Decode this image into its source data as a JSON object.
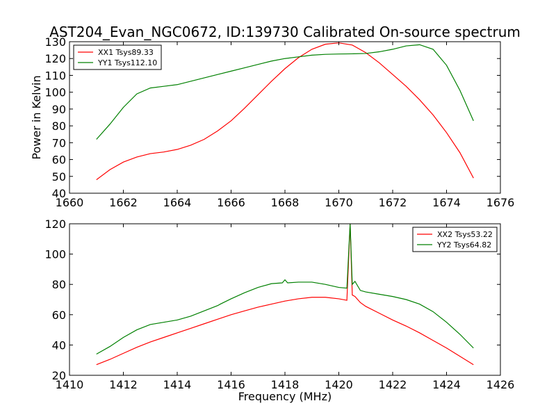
{
  "figure": {
    "title": "AST204_Evan_NGC0672, ID:139730 Calibrated On-source spectrum",
    "ylabel": "Power in Kelvin",
    "xlabel": "Frequency (MHz)"
  },
  "chart_data": [
    {
      "type": "line",
      "title": "AST204_Evan_NGC0672, ID:139730 Calibrated On-source spectrum",
      "ylabel": "Power in Kelvin",
      "xlabel": "",
      "xlim": [
        1660,
        1676
      ],
      "ylim": [
        40,
        130
      ],
      "xticks": [
        1660,
        1662,
        1664,
        1666,
        1668,
        1670,
        1672,
        1674,
        1676
      ],
      "yticks": [
        40,
        50,
        60,
        70,
        80,
        90,
        100,
        110,
        120,
        130
      ],
      "grid": false,
      "legend_position": "top-left",
      "series": [
        {
          "name": "XX1 Tsys89.33",
          "color": "#ff0000",
          "x": [
            1661,
            1661.5,
            1662,
            1662.5,
            1663,
            1663.5,
            1664,
            1664.5,
            1665,
            1665.5,
            1666,
            1666.5,
            1667,
            1667.5,
            1668,
            1668.5,
            1669,
            1669.5,
            1670,
            1670.5,
            1671,
            1671.5,
            1672,
            1672.5,
            1673,
            1673.5,
            1674,
            1674.5,
            1675
          ],
          "y": [
            48,
            54,
            58.5,
            61.5,
            63.5,
            64.5,
            66,
            68.5,
            72,
            77,
            83,
            90.5,
            98.5,
            106.5,
            114,
            120.5,
            125.5,
            128.5,
            129.3,
            128,
            123.5,
            117.5,
            110.5,
            103.5,
            95.5,
            86.5,
            76,
            64,
            49
          ]
        },
        {
          "name": "YY1 Tsys112.10",
          "color": "#008000",
          "x": [
            1661,
            1661.5,
            1662,
            1662.5,
            1663,
            1663.5,
            1664,
            1664.5,
            1665,
            1665.5,
            1666,
            1666.5,
            1667,
            1667.5,
            1668,
            1668.5,
            1669,
            1669.5,
            1670,
            1670.5,
            1671,
            1671.5,
            1672,
            1672.5,
            1673,
            1673.5,
            1674,
            1674.5,
            1675
          ],
          "y": [
            72,
            81,
            91,
            99,
            102.5,
            103.5,
            104.5,
            106.5,
            108.5,
            110.5,
            112.5,
            114.5,
            116.5,
            118.5,
            120,
            121,
            122,
            122.5,
            122.7,
            122.8,
            123,
            124,
            125.5,
            127.5,
            128.2,
            125.5,
            116,
            101,
            83
          ]
        }
      ]
    },
    {
      "type": "line",
      "title": "",
      "ylabel": "",
      "xlabel": "Frequency (MHz)",
      "xlim": [
        1410,
        1426
      ],
      "ylim": [
        20,
        120
      ],
      "xticks": [
        1410,
        1412,
        1414,
        1416,
        1418,
        1420,
        1422,
        1424,
        1426
      ],
      "yticks": [
        20,
        40,
        60,
        80,
        100,
        120
      ],
      "grid": false,
      "legend_position": "top-right",
      "series": [
        {
          "name": "XX2 Tsys53.22",
          "color": "#ff0000",
          "x": [
            1411,
            1411.5,
            1412,
            1412.5,
            1413,
            1413.5,
            1414,
            1414.5,
            1415,
            1415.5,
            1416,
            1416.5,
            1417,
            1417.5,
            1418,
            1418.5,
            1419,
            1419.5,
            1420,
            1420.3,
            1420.42,
            1420.5,
            1420.6,
            1420.8,
            1421,
            1421.5,
            1422,
            1422.5,
            1423,
            1423.5,
            1424,
            1424.5,
            1425
          ],
          "y": [
            27,
            30.5,
            34.5,
            38.5,
            42,
            45,
            48,
            51,
            54,
            57,
            60,
            62.5,
            65,
            67,
            69,
            70.5,
            71.5,
            71.5,
            70.5,
            69.5,
            120,
            73,
            72,
            68,
            65.5,
            61,
            56.5,
            52.5,
            48,
            43,
            38,
            32.5,
            27
          ]
        },
        {
          "name": "YY2 Tsys64.82",
          "color": "#008000",
          "x": [
            1411,
            1411.5,
            1412,
            1412.5,
            1413,
            1413.5,
            1414,
            1414.5,
            1415,
            1415.5,
            1415.6,
            1416,
            1416.5,
            1417,
            1417.5,
            1417.9,
            1418,
            1418.1,
            1418.5,
            1419,
            1419.5,
            1420,
            1420.3,
            1420.42,
            1420.5,
            1420.6,
            1420.8,
            1421,
            1421.5,
            1422,
            1422.5,
            1423,
            1423.5,
            1424,
            1424.5,
            1425
          ],
          "y": [
            34,
            39,
            45,
            50,
            53.5,
            55,
            56.5,
            59,
            62.5,
            66,
            67,
            70.5,
            74.5,
            78,
            80.5,
            81,
            83,
            81,
            81.5,
            81.5,
            80,
            78,
            77.5,
            120,
            80,
            82,
            76,
            75,
            73.5,
            72,
            70,
            67,
            62,
            55,
            47,
            38
          ]
        }
      ]
    }
  ]
}
